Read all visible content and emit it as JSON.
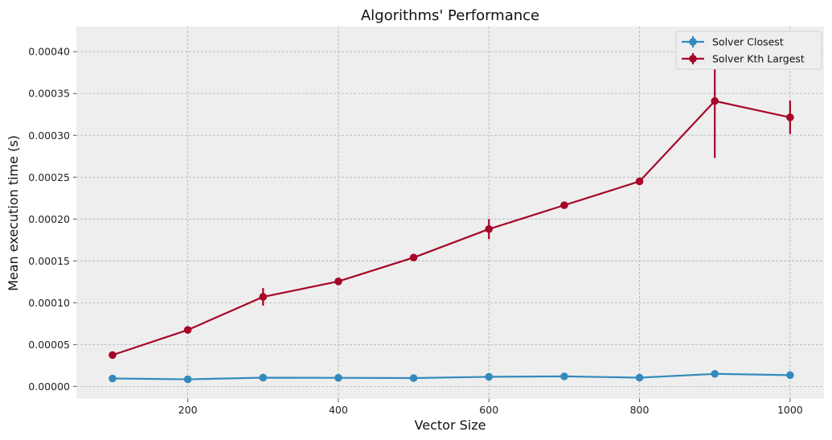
{
  "chart_data": {
    "type": "line",
    "title": "Algorithms' Performance",
    "xlabel": "Vector Size",
    "ylabel": "Mean execution time (s)",
    "x": [
      100,
      200,
      300,
      400,
      500,
      600,
      700,
      800,
      900,
      1000
    ],
    "xlim": [
      52,
      1045
    ],
    "ylim": [
      -1.5e-05,
      0.00043
    ],
    "xticks": [
      200,
      400,
      600,
      800,
      1000
    ],
    "xtick_labels": [
      "200",
      "400",
      "600",
      "800",
      "1000"
    ],
    "yticks": [
      0,
      5e-05,
      0.0001,
      0.00015,
      0.0002,
      0.00025,
      0.0003,
      0.00035,
      0.0004
    ],
    "ytick_labels": [
      "0.00000",
      "0.00005",
      "0.00010",
      "0.00015",
      "0.00020",
      "0.00025",
      "0.00030",
      "0.00035",
      "0.00040"
    ],
    "grid": true,
    "legend_position": "top-right",
    "series": [
      {
        "name": "Solver Closest",
        "color": "#348abd",
        "values": [
          9.5e-06,
          8.5e-06,
          1.05e-05,
          1.03e-05,
          1e-05,
          1.15e-05,
          1.2e-05,
          1.05e-05,
          1.5e-05,
          1.35e-05
        ],
        "errors": [
          5e-07,
          5e-07,
          5e-07,
          5e-07,
          5e-07,
          5e-07,
          5e-07,
          5e-07,
          1e-06,
          1e-06
        ]
      },
      {
        "name": "Solver Kth Largest",
        "color": "#a60628",
        "values": [
          3.75e-05,
          6.75e-05,
          0.000107,
          0.0001255,
          0.000154,
          0.000188,
          0.0002165,
          0.000245,
          0.000341,
          0.0003215
        ],
        "errors": [
          1.5e-06,
          4e-06,
          1.05e-05,
          1.5e-06,
          1.5e-06,
          1.2e-05,
          1.5e-06,
          1.5e-06,
          6.8e-05,
          2e-05
        ]
      }
    ]
  }
}
